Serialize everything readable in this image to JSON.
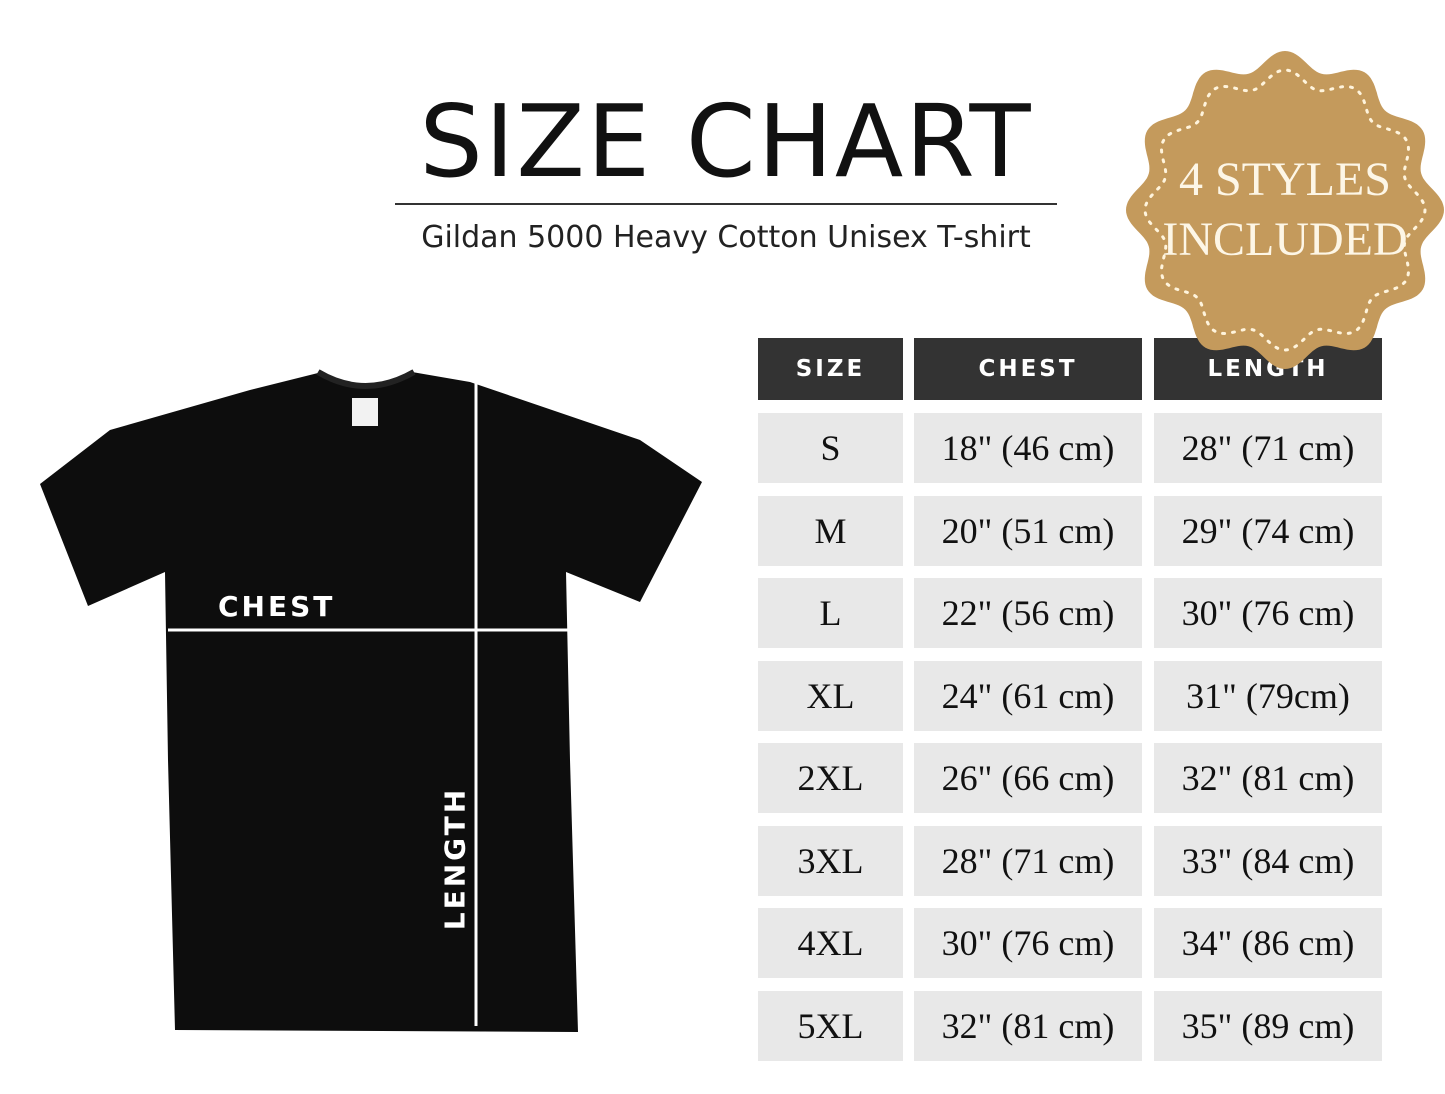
{
  "header": {
    "title": "SIZE CHART",
    "subtitle": "Gildan 5000 Heavy Cotton Unisex T-shirt"
  },
  "badge": {
    "line1": "4 STYLES",
    "line2": "INCLUDED",
    "color": "#c49a5c"
  },
  "diagram": {
    "chest_label": "CHEST",
    "length_label": "LENGTH",
    "shirt_color": "#0d0d0d"
  },
  "table": {
    "headers": [
      "SIZE",
      "CHEST",
      "LENGTH"
    ],
    "rows": [
      [
        "S",
        "18\" (46 cm)",
        "28\" (71 cm)"
      ],
      [
        "M",
        "20\" (51 cm)",
        "29\" (74 cm)"
      ],
      [
        "L",
        "22\" (56 cm)",
        "30\" (76 cm)"
      ],
      [
        "XL",
        "24\" (61 cm)",
        "31\" (79cm)"
      ],
      [
        "2XL",
        "26\" (66 cm)",
        "32\" (81 cm)"
      ],
      [
        "3XL",
        "28\" (71 cm)",
        "33\" (84 cm)"
      ],
      [
        "4XL",
        "30\" (76 cm)",
        "34\" (86 cm)"
      ],
      [
        "5XL",
        "32\" (81 cm)",
        "35\" (89 cm)"
      ]
    ]
  }
}
